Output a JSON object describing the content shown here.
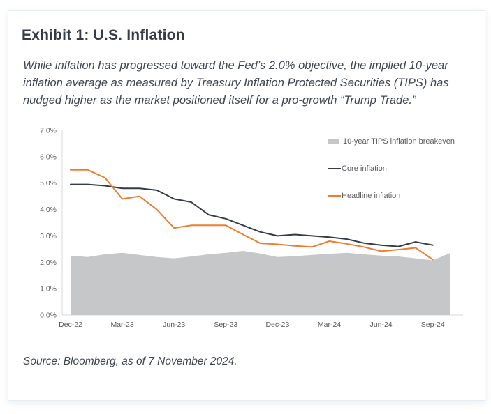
{
  "card": {
    "title": "Exhibit 1: U.S. Inflation",
    "subtitle": "While inflation has progressed toward the Fed’s 2.0% objective, the implied 10-year inflation average as measured by Treasury Inflation Protected Securities (TIPS) has nudged higher as the market positioned itself for a pro-growth “Trump Trade.”",
    "source": "Source: Bloomberg, as of 7 November 2024."
  },
  "colors": {
    "tips_area": "#c6c7c8",
    "core_line": "#333b48",
    "headline_line": "#ed7d31",
    "axis_line": "#d9d9d9",
    "tick_text": "#595959",
    "title_text": "#353b47",
    "body_text": "#3e4651",
    "card_border": "#e4edf3"
  },
  "chart_data": {
    "type": "line",
    "title": "",
    "xlabel": "",
    "ylabel": "",
    "ylim": [
      0,
      7
    ],
    "y_tick_step": 1,
    "grid": false,
    "legend_position": "inside-top-right",
    "categories": [
      "Dec-22",
      "Jan-23",
      "Feb-23",
      "Mar-23",
      "Apr-23",
      "May-23",
      "Jun-23",
      "Jul-23",
      "Aug-23",
      "Sep-23",
      "Oct-23",
      "Nov-23",
      "Dec-23",
      "Jan-24",
      "Feb-24",
      "Mar-24",
      "Apr-24",
      "May-24",
      "Jun-24",
      "Jul-24",
      "Aug-24",
      "Sep-24",
      "Oct-24"
    ],
    "y_axis_ticks": [
      "7.0%",
      "6.0%",
      "5.0%",
      "4.0%",
      "3.0%",
      "2.0%",
      "1.0%",
      "0.0%"
    ],
    "x_axis_ticks_shown": [
      "Dec-22",
      "Mar-23",
      "Jun-23",
      "Sep-23",
      "Dec-23",
      "Mar-24",
      "Jun-24",
      "Sep-24"
    ],
    "x_axis_tick_every": 3,
    "series": [
      {
        "name": "10-year TIPS inflation breakeven",
        "type": "area",
        "color": "#c6c7c8",
        "values": [
          2.25,
          2.2,
          2.3,
          2.36,
          2.28,
          2.2,
          2.15,
          2.22,
          2.3,
          2.36,
          2.43,
          2.33,
          2.2,
          2.23,
          2.28,
          2.32,
          2.36,
          2.3,
          2.25,
          2.22,
          2.15,
          2.07,
          2.35
        ]
      },
      {
        "name": "Core inflation",
        "type": "line",
        "color": "#333b48",
        "values": [
          4.95,
          4.95,
          4.9,
          4.8,
          4.8,
          4.73,
          4.4,
          4.28,
          3.8,
          3.65,
          3.4,
          3.15,
          3.0,
          3.05,
          3.0,
          2.95,
          2.88,
          2.73,
          2.65,
          2.6,
          2.77,
          2.65
        ]
      },
      {
        "name": "Headline inflation",
        "type": "line",
        "color": "#ed7d31",
        "values": [
          5.5,
          5.5,
          5.2,
          4.4,
          4.5,
          4.0,
          3.3,
          3.4,
          3.4,
          3.4,
          3.05,
          2.72,
          2.68,
          2.62,
          2.58,
          2.8,
          2.7,
          2.58,
          2.42,
          2.48,
          2.55,
          2.1
        ]
      }
    ]
  }
}
